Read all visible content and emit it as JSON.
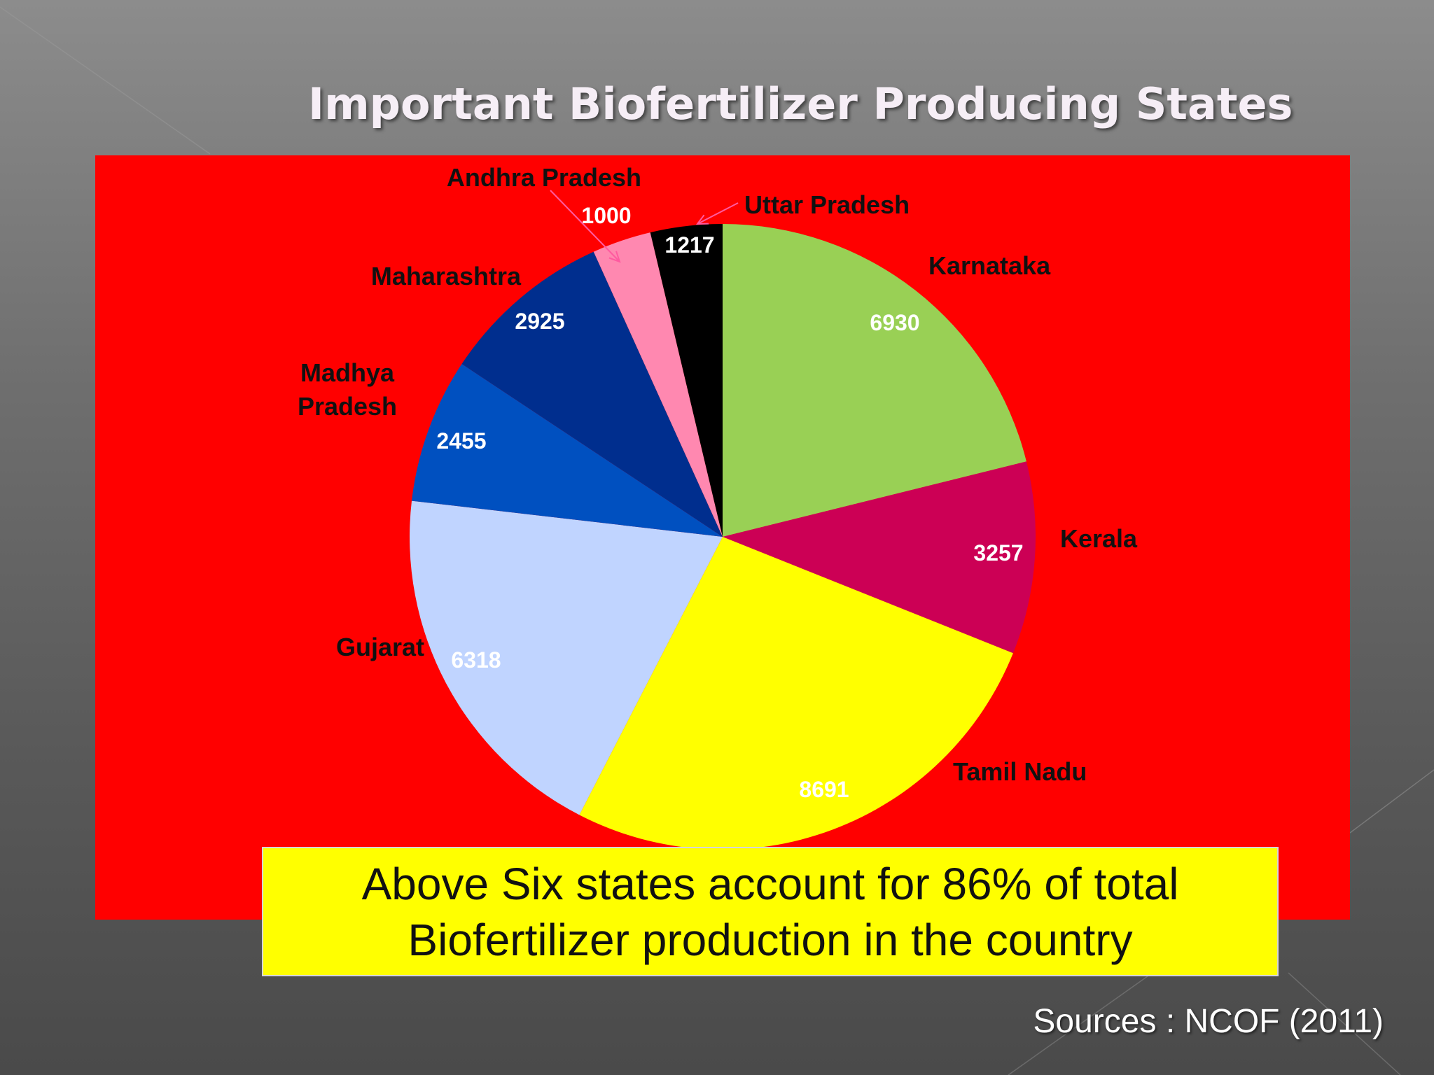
{
  "slide": {
    "title": "Important Biofertilizer Producing States",
    "note_line1": "Above Six states account for 86% of total",
    "note_line2": "Biofertilizer production in the country",
    "source": "Sources : NCOF (2011)"
  },
  "chart_data": {
    "type": "pie",
    "title": "",
    "start": "12 o'clock",
    "direction": "clockwise",
    "slices": [
      {
        "label": "Karnataka",
        "value": 6930,
        "color": "#99d055"
      },
      {
        "label": "Kerala",
        "value": 3257,
        "color": "#cc0055"
      },
      {
        "label": "Tamil Nadu",
        "value": 8691,
        "color": "#ffff00"
      },
      {
        "label": "Gujarat",
        "value": 6318,
        "color": "#c0d4ff"
      },
      {
        "label": "Madhya Pradesh",
        "value": 2455,
        "color": "#0050c0"
      },
      {
        "label": "Maharashtra",
        "value": 2925,
        "color": "#002e8e"
      },
      {
        "label": "Andhra Pradesh",
        "value": 1000,
        "color": "#ff88b0"
      },
      {
        "label": "Uttar Pradesh",
        "value": 1217,
        "color": "#000000"
      }
    ],
    "panel_background": "#ff0000"
  }
}
